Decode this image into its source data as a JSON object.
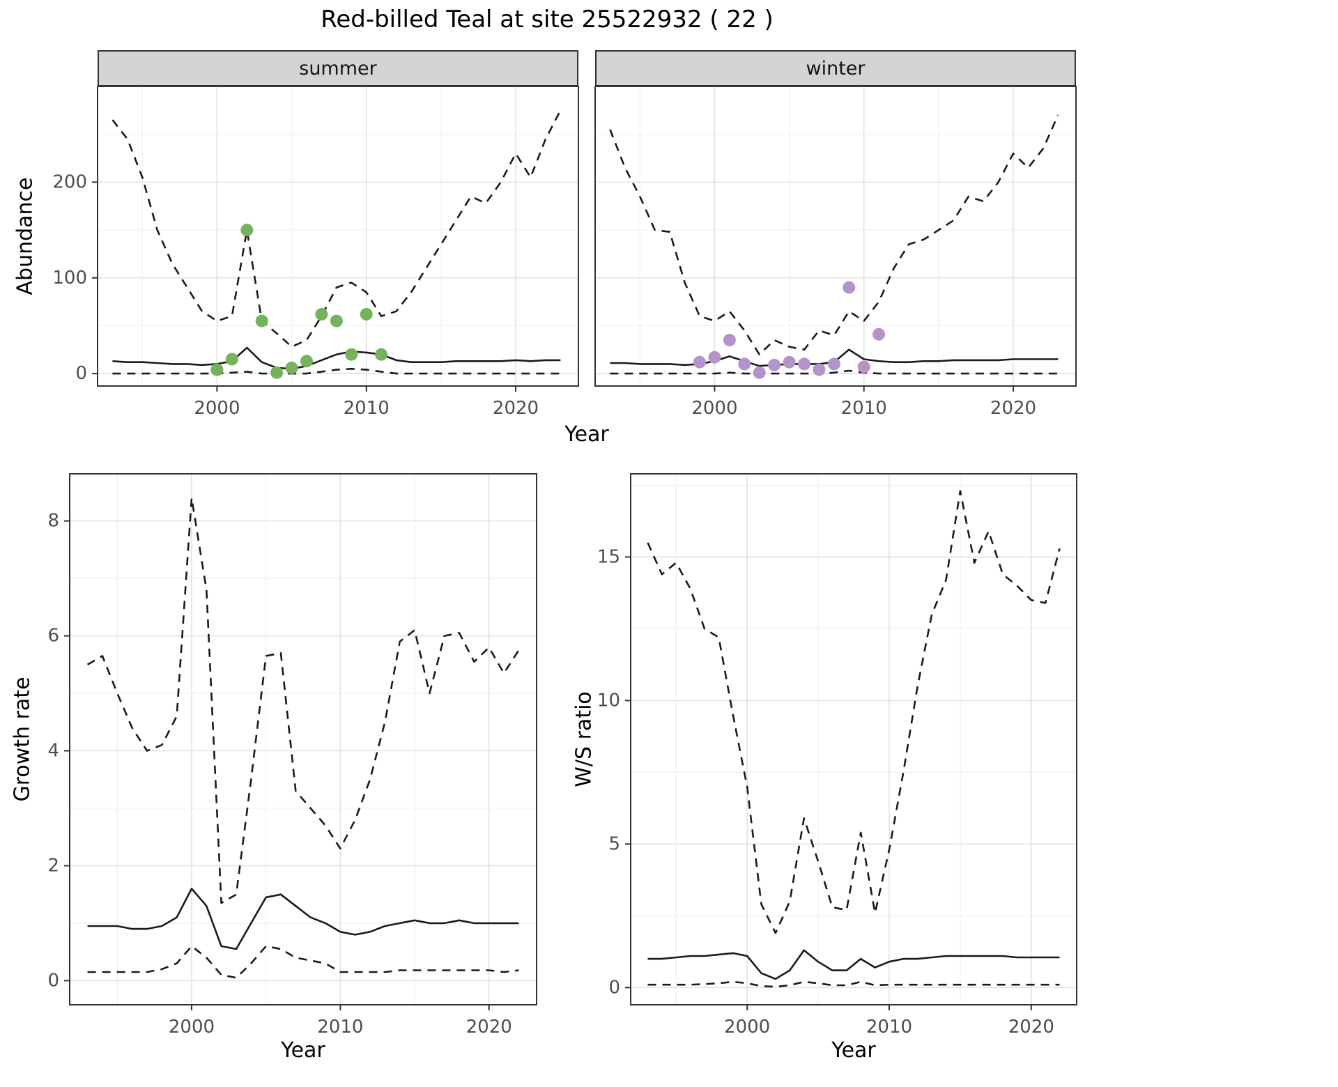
{
  "title": "Red-billed Teal at site 25522932 ( 22 )",
  "colors": {
    "summer_points": "#74b25c",
    "winter_points": "#b493cc",
    "line": "#1a1a1a",
    "strip_bg": "#d4d4d4",
    "grid_major": "#e2e2e2",
    "grid_minor": "#f0f0f0",
    "panel_border": "#333333",
    "axis_text": "#4d4d4d",
    "tick_mark": "#333333"
  },
  "chart_data": [
    {
      "id": "abundance-summer",
      "type": "line",
      "facet": "summer",
      "xlabel": "Year",
      "ylabel": "Abundance",
      "xlim": [
        1992,
        2024.2
      ],
      "ylim": [
        -13,
        300
      ],
      "xticks": [
        2000,
        2010,
        2020
      ],
      "yticks": [
        0,
        100,
        200
      ],
      "x": [
        1993,
        1994,
        1995,
        1996,
        1997,
        1998,
        1999,
        2000,
        2001,
        2002,
        2003,
        2004,
        2005,
        2006,
        2007,
        2008,
        2009,
        2010,
        2011,
        2012,
        2013,
        2014,
        2015,
        2016,
        2017,
        2018,
        2019,
        2020,
        2021,
        2022,
        2023
      ],
      "series": [
        {
          "name": "upper_95_ci",
          "style": "dashed",
          "values": [
            265,
            245,
            205,
            150,
            115,
            90,
            65,
            55,
            60,
            150,
            55,
            42,
            28,
            35,
            60,
            90,
            95,
            85,
            60,
            65,
            85,
            110,
            135,
            160,
            185,
            178,
            200,
            230,
            205,
            245,
            275
          ]
        },
        {
          "name": "median",
          "style": "solid",
          "values": [
            13,
            12,
            12,
            11,
            10,
            10,
            9,
            10,
            13,
            27,
            12,
            6,
            5,
            8,
            14,
            20,
            23,
            22,
            20,
            14,
            12,
            12,
            12,
            13,
            13,
            13,
            13,
            14,
            13,
            14,
            14
          ]
        },
        {
          "name": "lower_95_ci",
          "style": "dashed",
          "values": [
            0,
            0,
            0,
            0,
            0,
            0,
            0,
            0,
            1,
            2,
            0,
            0,
            0,
            0,
            2,
            4,
            5,
            4,
            2,
            0,
            0,
            0,
            0,
            0,
            0,
            0,
            0,
            0,
            0,
            0,
            0
          ]
        }
      ],
      "points": {
        "name": "observed-summer",
        "color": "#74b25c",
        "xy": [
          [
            2000,
            4
          ],
          [
            2001,
            15
          ],
          [
            2002,
            150
          ],
          [
            2003,
            55
          ],
          [
            2004,
            1
          ],
          [
            2005,
            6
          ],
          [
            2006,
            13
          ],
          [
            2007,
            62
          ],
          [
            2008,
            55
          ],
          [
            2009,
            20
          ],
          [
            2010,
            62
          ],
          [
            2011,
            20
          ]
        ]
      }
    },
    {
      "id": "abundance-winter",
      "type": "line",
      "facet": "winter",
      "xlabel": "Year",
      "ylabel": "",
      "xlim": [
        1992,
        2024.2
      ],
      "ylim": [
        -13,
        300
      ],
      "xticks": [
        2000,
        2010,
        2020
      ],
      "yticks": [
        0,
        100,
        200
      ],
      "x": [
        1993,
        1994,
        1995,
        1996,
        1997,
        1998,
        1999,
        2000,
        2001,
        2002,
        2003,
        2004,
        2005,
        2006,
        2007,
        2008,
        2009,
        2010,
        2011,
        2012,
        2013,
        2014,
        2015,
        2016,
        2017,
        2018,
        2019,
        2020,
        2021,
        2022,
        2023
      ],
      "series": [
        {
          "name": "upper_95_ci",
          "style": "dashed",
          "values": [
            255,
            215,
            185,
            150,
            148,
            95,
            60,
            55,
            65,
            45,
            20,
            35,
            28,
            25,
            45,
            40,
            65,
            55,
            75,
            110,
            135,
            140,
            150,
            160,
            185,
            180,
            200,
            230,
            215,
            235,
            270
          ]
        },
        {
          "name": "median",
          "style": "solid",
          "values": [
            11,
            11,
            10,
            10,
            10,
            9,
            10,
            13,
            18,
            13,
            8,
            9,
            10,
            10,
            10,
            12,
            25,
            15,
            13,
            12,
            12,
            13,
            13,
            14,
            14,
            14,
            14,
            15,
            15,
            15,
            15
          ]
        },
        {
          "name": "lower_95_ci",
          "style": "dashed",
          "values": [
            0,
            0,
            0,
            0,
            0,
            0,
            0,
            0,
            1,
            0,
            0,
            0,
            0,
            0,
            0,
            1,
            3,
            1,
            0,
            0,
            0,
            0,
            0,
            0,
            0,
            0,
            0,
            0,
            0,
            0,
            0
          ]
        }
      ],
      "points": {
        "name": "observed-winter",
        "color": "#b493cc",
        "xy": [
          [
            1999,
            12
          ],
          [
            2000,
            17
          ],
          [
            2001,
            35
          ],
          [
            2002,
            10
          ],
          [
            2003,
            1
          ],
          [
            2004,
            9
          ],
          [
            2005,
            12
          ],
          [
            2006,
            10
          ],
          [
            2007,
            4
          ],
          [
            2008,
            10
          ],
          [
            2009,
            90
          ],
          [
            2010,
            7
          ],
          [
            2011,
            41
          ]
        ]
      }
    },
    {
      "id": "growth-rate",
      "type": "line",
      "facet": "",
      "xlabel": "Year",
      "ylabel": "Growth rate",
      "xlim": [
        1991.8,
        2023.2
      ],
      "ylim": [
        -0.42,
        8.82
      ],
      "xticks": [
        2000,
        2010,
        2020
      ],
      "yticks": [
        0,
        2,
        4,
        6,
        8
      ],
      "x": [
        1993,
        1994,
        1995,
        1996,
        1997,
        1998,
        1999,
        2000,
        2001,
        2002,
        2003,
        2004,
        2005,
        2006,
        2007,
        2008,
        2009,
        2010,
        2011,
        2012,
        2013,
        2014,
        2015,
        2016,
        2017,
        2018,
        2019,
        2020,
        2021,
        2022
      ],
      "series": [
        {
          "name": "upper_95_ci",
          "style": "dashed",
          "values": [
            5.5,
            5.65,
            5.0,
            4.4,
            4.0,
            4.1,
            4.6,
            8.4,
            6.8,
            1.35,
            1.5,
            3.5,
            5.65,
            5.7,
            3.3,
            3.0,
            2.7,
            2.3,
            2.8,
            3.5,
            4.5,
            5.9,
            6.1,
            5.0,
            6.0,
            6.05,
            5.55,
            5.8,
            5.35,
            5.75
          ]
        },
        {
          "name": "median",
          "style": "solid",
          "values": [
            0.95,
            0.95,
            0.95,
            0.9,
            0.9,
            0.95,
            1.1,
            1.6,
            1.3,
            0.6,
            0.55,
            1.0,
            1.45,
            1.5,
            1.3,
            1.1,
            1.0,
            0.85,
            0.8,
            0.85,
            0.95,
            1.0,
            1.05,
            1.0,
            1.0,
            1.05,
            1.0,
            1.0,
            1.0,
            1.0
          ]
        },
        {
          "name": "lower_95_ci",
          "style": "dashed",
          "values": [
            0.15,
            0.15,
            0.15,
            0.15,
            0.15,
            0.2,
            0.3,
            0.6,
            0.4,
            0.1,
            0.05,
            0.3,
            0.6,
            0.55,
            0.4,
            0.35,
            0.3,
            0.15,
            0.15,
            0.15,
            0.15,
            0.18,
            0.18,
            0.18,
            0.18,
            0.18,
            0.18,
            0.18,
            0.15,
            0.18
          ]
        }
      ],
      "points": null
    },
    {
      "id": "ws-ratio",
      "type": "line",
      "facet": "",
      "xlabel": "Year",
      "ylabel": "W/S ratio",
      "xlim": [
        1991.8,
        2023.2
      ],
      "ylim": [
        -0.6,
        17.9
      ],
      "xticks": [
        2000,
        2010,
        2020
      ],
      "yticks": [
        0,
        5,
        10,
        15
      ],
      "x": [
        1993,
        1994,
        1995,
        1996,
        1997,
        1998,
        1999,
        2000,
        2001,
        2002,
        2003,
        2004,
        2005,
        2006,
        2007,
        2008,
        2009,
        2010,
        2011,
        2012,
        2013,
        2014,
        2015,
        2016,
        2017,
        2018,
        2019,
        2020,
        2021,
        2022
      ],
      "series": [
        {
          "name": "upper_95_ci",
          "style": "dashed",
          "values": [
            15.5,
            14.4,
            14.8,
            13.9,
            12.5,
            12.2,
            9.5,
            7.0,
            2.9,
            1.9,
            3.0,
            5.9,
            4.4,
            2.8,
            2.7,
            5.4,
            2.6,
            4.8,
            7.5,
            10.5,
            13.0,
            14.2,
            17.3,
            14.8,
            15.9,
            14.4,
            14.0,
            13.5,
            13.4,
            15.3
          ]
        },
        {
          "name": "median",
          "style": "solid",
          "values": [
            1.0,
            1.0,
            1.05,
            1.1,
            1.1,
            1.15,
            1.2,
            1.1,
            0.5,
            0.3,
            0.6,
            1.3,
            0.9,
            0.6,
            0.6,
            1.0,
            0.7,
            0.9,
            1.0,
            1.0,
            1.05,
            1.1,
            1.1,
            1.1,
            1.1,
            1.1,
            1.05,
            1.05,
            1.05,
            1.05
          ]
        },
        {
          "name": "lower_95_ci",
          "style": "dashed",
          "values": [
            0.1,
            0.1,
            0.1,
            0.1,
            0.12,
            0.15,
            0.2,
            0.15,
            0.05,
            0.03,
            0.08,
            0.2,
            0.15,
            0.08,
            0.08,
            0.2,
            0.08,
            0.1,
            0.1,
            0.1,
            0.1,
            0.1,
            0.1,
            0.1,
            0.1,
            0.1,
            0.1,
            0.1,
            0.1,
            0.1
          ]
        }
      ],
      "points": null
    }
  ]
}
